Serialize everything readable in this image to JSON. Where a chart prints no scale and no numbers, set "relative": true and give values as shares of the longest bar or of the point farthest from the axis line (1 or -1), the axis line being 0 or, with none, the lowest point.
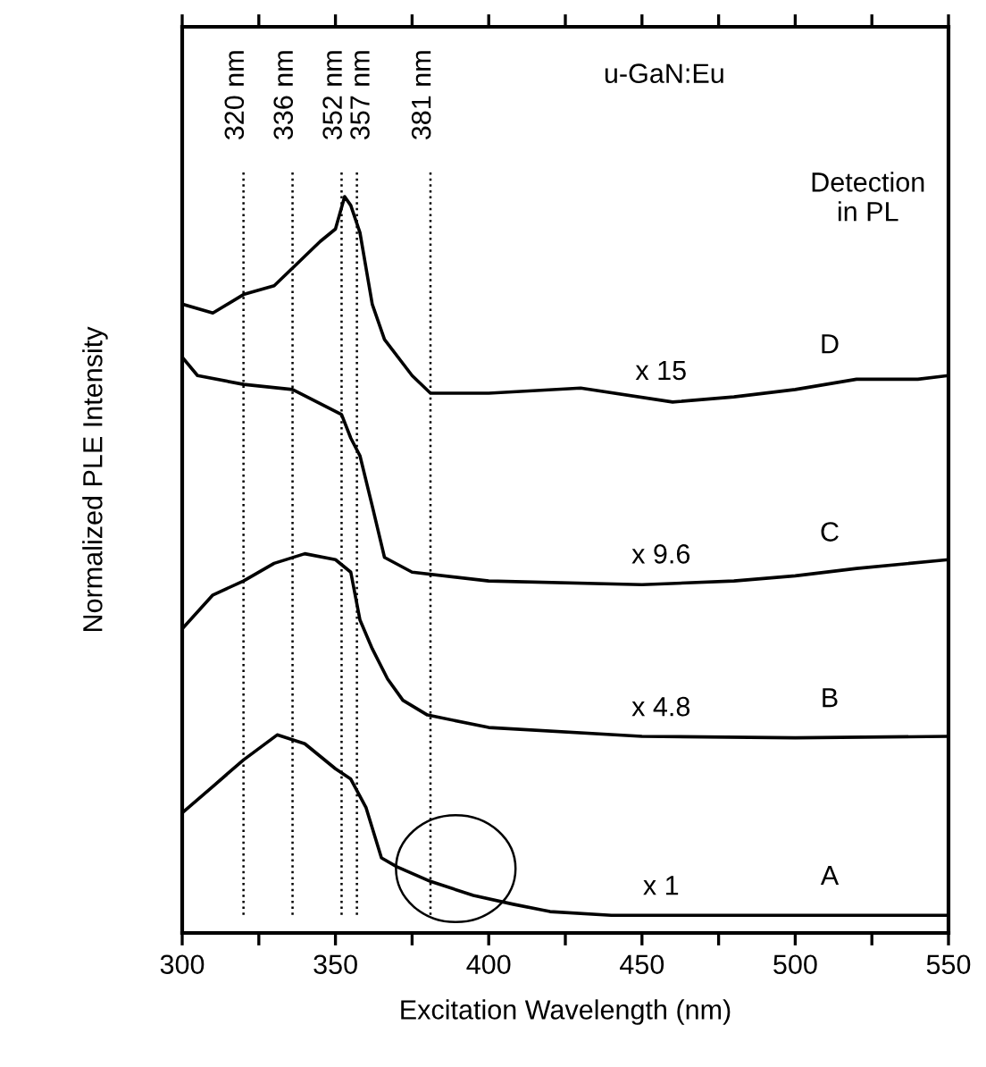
{
  "chart_data": {
    "type": "line",
    "relative": true,
    "xlabel": "Excitation Wavelength (nm)",
    "ylabel": "Normalized PLE Intensity",
    "xlim": [
      300,
      550
    ],
    "xticks": [
      300,
      {
        "value": 325,
        "label": null
      },
      350,
      {
        "value": 375,
        "label": null
      },
      400,
      {
        "value": 425,
        "label": null
      },
      450,
      {
        "value": 475,
        "label": null
      },
      500,
      {
        "value": 525,
        "label": null
      },
      550
    ],
    "series": [
      {
        "name": "A",
        "color": "#000000",
        "x": [
          300,
          310,
          320,
          331,
          340,
          350,
          355,
          360,
          365,
          370,
          381,
          395,
          408,
          420,
          440,
          550
        ],
        "values": [
          0.163,
          0.199,
          0.235,
          0.269,
          0.257,
          0.223,
          0.209,
          0.17,
          0.102,
          0.09,
          0.07,
          0.051,
          0.039,
          0.029,
          0.024,
          0.024
        ]
      },
      {
        "name": "B",
        "color": "#000000",
        "x": [
          300,
          310,
          320,
          330,
          340,
          350,
          355,
          358,
          362,
          367,
          372,
          380,
          400,
          450,
          500,
          550
        ],
        "values": [
          0.413,
          0.459,
          0.478,
          0.502,
          0.515,
          0.507,
          0.49,
          0.425,
          0.386,
          0.345,
          0.316,
          0.296,
          0.279,
          0.267,
          0.265,
          0.267
        ]
      },
      {
        "name": "C",
        "color": "#000000",
        "x": [
          300,
          305,
          320,
          336,
          352,
          355,
          358,
          362,
          366,
          375,
          400,
          450,
          480,
          500,
          520,
          550
        ],
        "values": [
          0.782,
          0.757,
          0.745,
          0.738,
          0.704,
          0.672,
          0.648,
          0.58,
          0.51,
          0.49,
          0.478,
          0.473,
          0.478,
          0.485,
          0.495,
          0.507
        ]
      },
      {
        "name": "D",
        "color": "#000000",
        "x": [
          300,
          310,
          320,
          330,
          336,
          345,
          350,
          353,
          355,
          358,
          362,
          366,
          375,
          381,
          400,
          430,
          460,
          480,
          500,
          520,
          540,
          550
        ],
        "values": [
          0.854,
          0.842,
          0.867,
          0.879,
          0.903,
          0.939,
          0.956,
          1,
          0.988,
          0.951,
          0.854,
          0.806,
          0.757,
          0.733,
          0.733,
          0.74,
          0.721,
          0.728,
          0.738,
          0.752,
          0.752,
          0.757
        ]
      }
    ],
    "ref_lines": [
      {
        "axis": "x",
        "value": 320,
        "label": "320 nm",
        "line_style": "dotted",
        "color": "#000000"
      },
      {
        "axis": "x",
        "value": 336,
        "label": "336 nm",
        "line_style": "dotted",
        "color": "#000000"
      },
      {
        "axis": "x",
        "value": 352,
        "label": "352 nm",
        "line_style": "dotted",
        "color": "#000000"
      },
      {
        "axis": "x",
        "value": 357,
        "label": "357 nm",
        "line_style": "dotted",
        "color": "#000000"
      },
      {
        "axis": "x",
        "value": 381,
        "label": "381 nm",
        "line_style": "dotted",
        "color": "#000000"
      }
    ],
    "annotations": [
      "u-GaN:Eu",
      "Detection\nin PL",
      "x 15",
      "x 9.6",
      "x 4.8",
      "x 1"
    ],
    "grid": false,
    "legend": false,
    "line_style": "solid",
    "marker": "none"
  }
}
